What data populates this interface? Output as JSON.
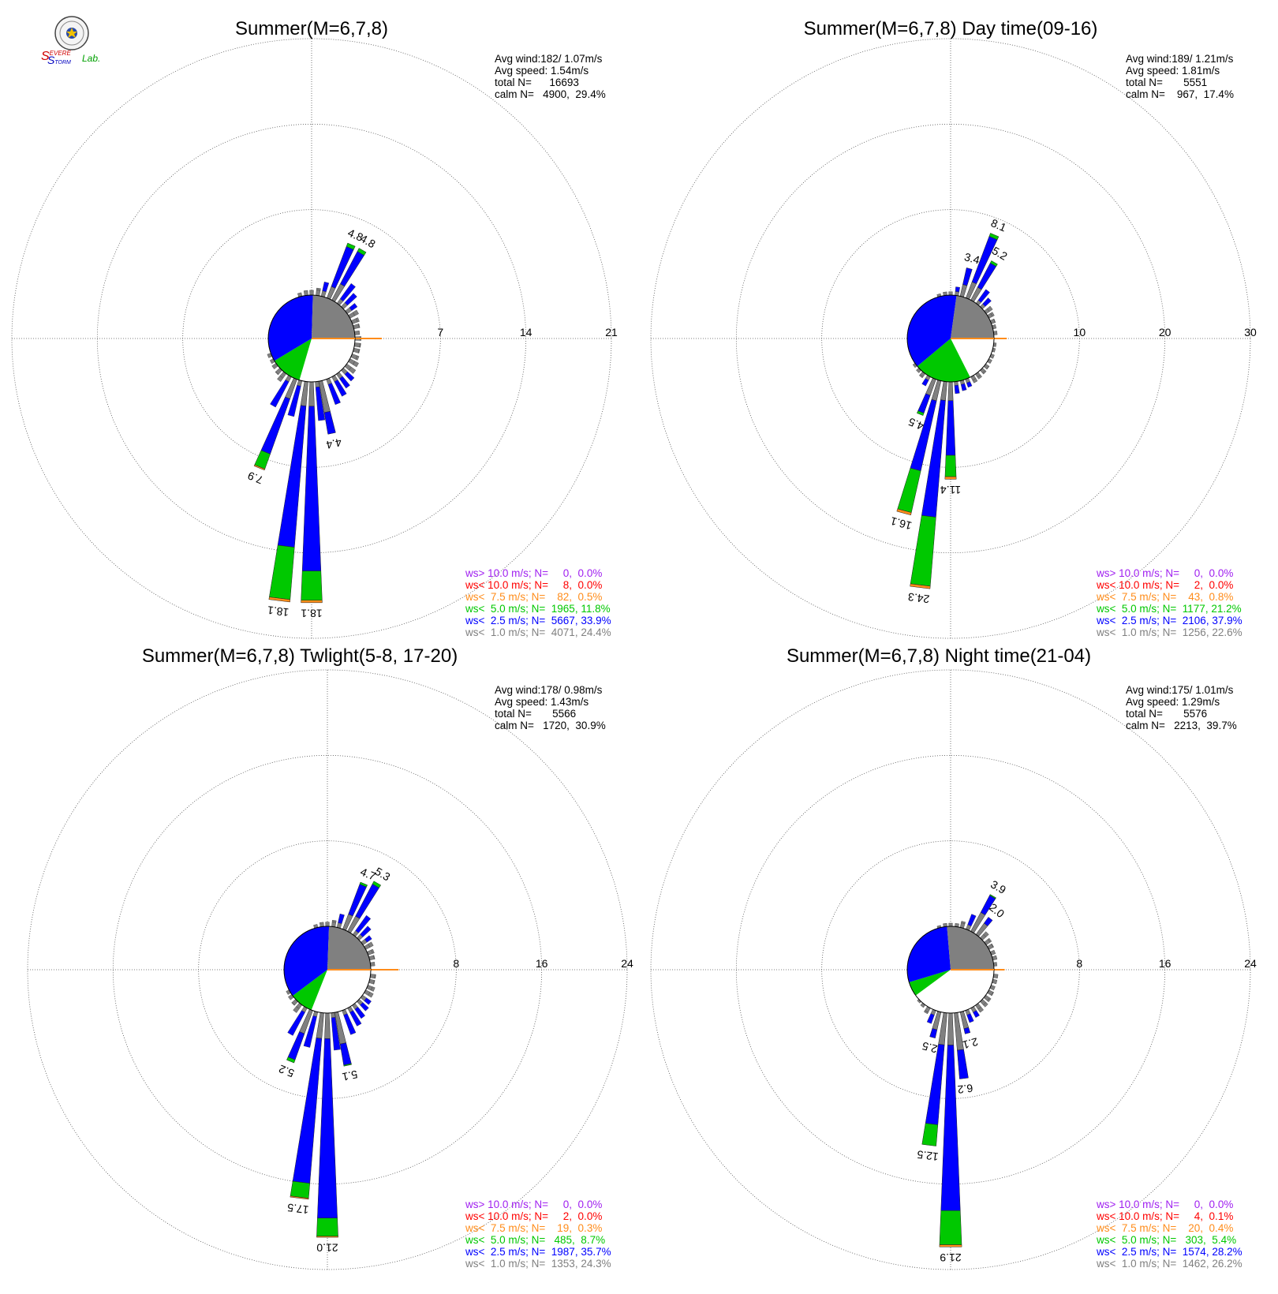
{
  "logo": {
    "text_s1": "S",
    "text_evere": "EVERE",
    "text_s2": "S",
    "text_torm": "TORM",
    "text_lab": "Lab."
  },
  "colors": {
    "ws_gt10": "#a020f0",
    "ws_lt10": "#ff0000",
    "ws_lt75": "#ff8c1a",
    "ws_lt50": "#00c800",
    "ws_lt25": "#0000ff",
    "ws_lt10c": "#808080"
  },
  "chart_data": [
    {
      "type": "wind_rose",
      "title": "Summer(M=6,7,8)",
      "stats": [
        "Avg wind:182/ 1.07m/s",
        "Avg speed: 1.54m/s",
        "total N=      16693",
        "calm N=   4900,  29.4%"
      ],
      "rings": [
        7,
        14,
        21
      ],
      "ring_labels": [
        "7",
        "14",
        "21"
      ],
      "calm_pie": [
        {
          "class": "calm",
          "color": "#ffffff",
          "percent": 29.4
        },
        {
          "class": "ws< 5.0",
          "color": "#00c800",
          "percent": 11.8
        },
        {
          "class": "ws< 2.5",
          "color": "#0000ff",
          "percent": 33.9
        },
        {
          "class": "ws< 1.0",
          "color": "#808080",
          "percent": 24.4
        }
      ],
      "labeled_petals": [
        {
          "dir_deg": 23,
          "gray": 1.0,
          "blue": 3.5,
          "green": 0.3,
          "orange": 0.0,
          "label": "4.8"
        },
        {
          "dir_deg": 30,
          "gray": 1.5,
          "blue": 3.0,
          "green": 0.3,
          "orange": 0.0,
          "label": "4.8"
        },
        {
          "dir_deg": 202,
          "gray": 1.7,
          "blue": 4.8,
          "green": 1.3,
          "orange": 0.1,
          "label": "7.9"
        },
        {
          "dir_deg": 187,
          "gray": 2.0,
          "blue": 11.6,
          "green": 4.3,
          "orange": 0.2,
          "label": "18.1"
        },
        {
          "dir_deg": 180,
          "gray": 2.0,
          "blue": 13.5,
          "green": 2.4,
          "orange": 0.2,
          "label": "18.1"
        },
        {
          "dir_deg": 168,
          "gray": 2.6,
          "blue": 1.8,
          "green": 0.0,
          "orange": 0.0,
          "label": "4.4"
        }
      ],
      "small_petals": [
        {
          "dir_deg": 0,
          "value": 0.4
        },
        {
          "dir_deg": 8,
          "value": 0.6
        },
        {
          "dir_deg": 15,
          "value": 1.2
        },
        {
          "dir_deg": 38,
          "value": 2.0
        },
        {
          "dir_deg": 45,
          "value": 1.5
        },
        {
          "dir_deg": 53,
          "value": 1.0
        },
        {
          "dir_deg": 60,
          "value": 0.8
        },
        {
          "dir_deg": 68,
          "value": 0.6
        },
        {
          "dir_deg": 75,
          "value": 0.5
        },
        {
          "dir_deg": 83,
          "value": 0.4
        },
        {
          "dir_deg": 90,
          "value": 0.5
        },
        {
          "dir_deg": 98,
          "value": 0.5
        },
        {
          "dir_deg": 105,
          "value": 0.5
        },
        {
          "dir_deg": 113,
          "value": 0.6
        },
        {
          "dir_deg": 120,
          "value": 0.8
        },
        {
          "dir_deg": 128,
          "value": 0.9
        },
        {
          "dir_deg": 135,
          "value": 1.2
        },
        {
          "dir_deg": 143,
          "value": 1.4
        },
        {
          "dir_deg": 150,
          "value": 1.8
        },
        {
          "dir_deg": 158,
          "value": 2.2
        },
        {
          "dir_deg": 173,
          "value": 3.2
        },
        {
          "dir_deg": 195,
          "value": 3.0
        },
        {
          "dir_deg": 210,
          "value": 2.8
        },
        {
          "dir_deg": 218,
          "value": 0.8
        },
        {
          "dir_deg": 225,
          "value": 0.5
        },
        {
          "dir_deg": 233,
          "value": 0.4
        },
        {
          "dir_deg": 240,
          "value": 0.3
        },
        {
          "dir_deg": 248,
          "value": 0.3
        },
        {
          "dir_deg": 345,
          "value": 0.3
        },
        {
          "dir_deg": 353,
          "value": 0.4
        }
      ],
      "east_bar": 2.2,
      "legend": [
        {
          "text": "ws> 10.0 m/s; N=     0,  0.0%",
          "color": "#a020f0"
        },
        {
          "text": "ws< 10.0 m/s; N=     8,  0.0%",
          "color": "#ff0000"
        },
        {
          "text": "ws<  7.5 m/s; N=    82,  0.5%",
          "color": "#ff8c1a"
        },
        {
          "text": "ws<  5.0 m/s; N=  1965, 11.8%",
          "color": "#00c800"
        },
        {
          "text": "ws<  2.5 m/s; N=  5667, 33.9%",
          "color": "#0000ff"
        },
        {
          "text": "ws<  1.0 m/s; N=  4071, 24.4%",
          "color": "#808080"
        }
      ]
    },
    {
      "type": "wind_rose",
      "title": "Summer(M=6,7,8) Day time(09-16)",
      "stats": [
        "Avg wind:189/ 1.21m/s",
        "Avg speed: 1.81m/s",
        "total N=       5551",
        "calm N=    967,  17.4%"
      ],
      "rings": [
        10,
        20,
        30
      ],
      "ring_labels": [
        "10",
        "20",
        "30"
      ],
      "calm_pie": [
        {
          "class": "calm",
          "color": "#ffffff",
          "percent": 17.4
        },
        {
          "class": "ws< 5.0",
          "color": "#00c800",
          "percent": 21.2
        },
        {
          "class": "ws< 2.5",
          "color": "#0000ff",
          "percent": 37.9
        },
        {
          "class": "ws< 1.0",
          "color": "#808080",
          "percent": 22.6
        }
      ],
      "labeled_petals": [
        {
          "dir_deg": 15,
          "gray": 1.4,
          "blue": 2.0,
          "green": 0.0,
          "orange": 0.0,
          "label": "3.4"
        },
        {
          "dir_deg": 23,
          "gray": 2.0,
          "blue": 5.7,
          "green": 0.4,
          "orange": 0.0,
          "label": "8.1"
        },
        {
          "dir_deg": 30,
          "gray": 1.7,
          "blue": 3.2,
          "green": 0.3,
          "orange": 0.0,
          "label": "5.2"
        },
        {
          "dir_deg": 202,
          "gray": 2.0,
          "blue": 2.2,
          "green": 0.3,
          "orange": 0.0,
          "label": "4.5"
        },
        {
          "dir_deg": 195,
          "gray": 2.4,
          "blue": 8.4,
          "green": 5.0,
          "orange": 0.3,
          "label": "16.1"
        },
        {
          "dir_deg": 187,
          "gray": 2.2,
          "blue": 13.7,
          "green": 8.1,
          "orange": 0.3,
          "label": "24.3"
        },
        {
          "dir_deg": 180,
          "gray": 2.2,
          "blue": 6.4,
          "green": 2.5,
          "orange": 0.3,
          "label": "11.4"
        }
      ],
      "small_petals": [
        {
          "dir_deg": 0,
          "value": 0.4
        },
        {
          "dir_deg": 8,
          "value": 1.0
        },
        {
          "dir_deg": 38,
          "value": 2.0
        },
        {
          "dir_deg": 45,
          "value": 1.4
        },
        {
          "dir_deg": 53,
          "value": 0.9
        },
        {
          "dir_deg": 60,
          "value": 0.7
        },
        {
          "dir_deg": 68,
          "value": 0.5
        },
        {
          "dir_deg": 75,
          "value": 0.4
        },
        {
          "dir_deg": 83,
          "value": 0.4
        },
        {
          "dir_deg": 98,
          "value": 0.3
        },
        {
          "dir_deg": 105,
          "value": 0.3
        },
        {
          "dir_deg": 113,
          "value": 0.4
        },
        {
          "dir_deg": 120,
          "value": 0.4
        },
        {
          "dir_deg": 128,
          "value": 0.5
        },
        {
          "dir_deg": 135,
          "value": 0.6
        },
        {
          "dir_deg": 143,
          "value": 0.7
        },
        {
          "dir_deg": 150,
          "value": 0.8
        },
        {
          "dir_deg": 158,
          "value": 1.0
        },
        {
          "dir_deg": 165,
          "value": 1.2
        },
        {
          "dir_deg": 173,
          "value": 1.4
        },
        {
          "dir_deg": 210,
          "value": 1.2
        },
        {
          "dir_deg": 218,
          "value": 0.6
        },
        {
          "dir_deg": 225,
          "value": 0.4
        },
        {
          "dir_deg": 233,
          "value": 0.3
        },
        {
          "dir_deg": 345,
          "value": 0.3
        },
        {
          "dir_deg": 353,
          "value": 0.4
        }
      ],
      "east_bar": 1.5,
      "legend": [
        {
          "text": "ws> 10.0 m/s; N=     0,  0.0%",
          "color": "#a020f0"
        },
        {
          "text": "ws< 10.0 m/s; N=     2,  0.0%",
          "color": "#ff0000"
        },
        {
          "text": "ws<  7.5 m/s; N=    43,  0.8%",
          "color": "#ff8c1a"
        },
        {
          "text": "ws<  5.0 m/s; N=  1177, 21.2%",
          "color": "#00c800"
        },
        {
          "text": "ws<  2.5 m/s; N=  2106, 37.9%",
          "color": "#0000ff"
        },
        {
          "text": "ws<  1.0 m/s; N=  1256, 22.6%",
          "color": "#808080"
        }
      ]
    },
    {
      "type": "wind_rose",
      "title": "Summer(M=6,7,8) Twlight(5-8, 17-20)",
      "stats": [
        "Avg wind:178/ 0.98m/s",
        "Avg speed: 1.43m/s",
        "total N=       5566",
        "calm N=   1720,  30.9%"
      ],
      "rings": [
        8,
        16,
        24
      ],
      "ring_labels": [
        "8",
        "16",
        "24"
      ],
      "calm_pie": [
        {
          "class": "calm",
          "color": "#ffffff",
          "percent": 30.9
        },
        {
          "class": "ws< 5.0",
          "color": "#00c800",
          "percent": 8.7
        },
        {
          "class": "ws< 2.5",
          "color": "#0000ff",
          "percent": 35.7
        },
        {
          "class": "ws< 1.0",
          "color": "#808080",
          "percent": 24.3
        }
      ],
      "labeled_petals": [
        {
          "dir_deg": 23,
          "gray": 1.5,
          "blue": 3.0,
          "green": 0.2,
          "orange": 0.0,
          "label": "4.7"
        },
        {
          "dir_deg": 30,
          "gray": 1.6,
          "blue": 3.4,
          "green": 0.3,
          "orange": 0.0,
          "label": "5.3"
        },
        {
          "dir_deg": 202,
          "gray": 2.3,
          "blue": 2.6,
          "green": 0.3,
          "orange": 0.0,
          "label": "5.2"
        },
        {
          "dir_deg": 187,
          "gray": 2.4,
          "blue": 13.6,
          "green": 1.4,
          "orange": 0.1,
          "label": "17.5"
        },
        {
          "dir_deg": 180,
          "gray": 2.4,
          "blue": 16.8,
          "green": 1.7,
          "orange": 0.1,
          "label": "21.0"
        },
        {
          "dir_deg": 168,
          "gray": 3.0,
          "blue": 2.0,
          "green": 0.1,
          "orange": 0.0,
          "label": "5.1"
        }
      ],
      "small_petals": [
        {
          "dir_deg": 0,
          "value": 0.4
        },
        {
          "dir_deg": 8,
          "value": 0.6
        },
        {
          "dir_deg": 15,
          "value": 1.3
        },
        {
          "dir_deg": 38,
          "value": 2.2
        },
        {
          "dir_deg": 45,
          "value": 1.5
        },
        {
          "dir_deg": 53,
          "value": 1.0
        },
        {
          "dir_deg": 60,
          "value": 0.8
        },
        {
          "dir_deg": 68,
          "value": 0.6
        },
        {
          "dir_deg": 75,
          "value": 0.5
        },
        {
          "dir_deg": 83,
          "value": 0.4
        },
        {
          "dir_deg": 98,
          "value": 0.5
        },
        {
          "dir_deg": 105,
          "value": 0.5
        },
        {
          "dir_deg": 113,
          "value": 0.7
        },
        {
          "dir_deg": 120,
          "value": 0.8
        },
        {
          "dir_deg": 128,
          "value": 1.0
        },
        {
          "dir_deg": 135,
          "value": 1.2
        },
        {
          "dir_deg": 143,
          "value": 1.5
        },
        {
          "dir_deg": 150,
          "value": 1.9
        },
        {
          "dir_deg": 158,
          "value": 2.4
        },
        {
          "dir_deg": 173,
          "value": 3.5
        },
        {
          "dir_deg": 195,
          "value": 3.4
        },
        {
          "dir_deg": 210,
          "value": 2.9
        },
        {
          "dir_deg": 218,
          "value": 0.9
        },
        {
          "dir_deg": 225,
          "value": 0.5
        },
        {
          "dir_deg": 233,
          "value": 0.4
        },
        {
          "dir_deg": 240,
          "value": 0.3
        },
        {
          "dir_deg": 345,
          "value": 0.3
        },
        {
          "dir_deg": 353,
          "value": 0.4
        }
      ],
      "east_bar": 2.6,
      "legend": [
        {
          "text": "ws> 10.0 m/s; N=     0,  0.0%",
          "color": "#a020f0"
        },
        {
          "text": "ws< 10.0 m/s; N=     2,  0.0%",
          "color": "#ff0000"
        },
        {
          "text": "ws<  7.5 m/s; N=    19,  0.3%",
          "color": "#ff8c1a"
        },
        {
          "text": "ws<  5.0 m/s; N=   485,  8.7%",
          "color": "#00c800"
        },
        {
          "text": "ws<  2.5 m/s; N=  1987, 35.7%",
          "color": "#0000ff"
        },
        {
          "text": "ws<  1.0 m/s; N=  1353, 24.3%",
          "color": "#808080"
        }
      ]
    },
    {
      "type": "wind_rose",
      "title": "Summer(M=6,7,8) Night time(21-04)",
      "stats": [
        "Avg wind:175/ 1.01m/s",
        "Avg speed: 1.29m/s",
        "total N=       5576",
        "calm N=   2213,  39.7%"
      ],
      "rings": [
        8,
        16,
        24
      ],
      "ring_labels": [
        "8",
        "16",
        "24"
      ],
      "calm_pie": [
        {
          "class": "calm",
          "color": "#ffffff",
          "percent": 39.7
        },
        {
          "class": "ws< 5.0",
          "color": "#00c800",
          "percent": 5.4
        },
        {
          "class": "ws< 2.5",
          "color": "#0000ff",
          "percent": 28.2
        },
        {
          "class": "ws< 1.0",
          "color": "#808080",
          "percent": 26.2
        }
      ],
      "labeled_petals": [
        {
          "dir_deg": 30,
          "gray": 2.0,
          "blue": 1.8,
          "green": 0.1,
          "orange": 0.0,
          "label": "3.9"
        },
        {
          "dir_deg": 38,
          "gray": 1.3,
          "blue": 0.7,
          "green": 0.0,
          "orange": 0.0,
          "label": "2.0"
        },
        {
          "dir_deg": 195,
          "gray": 1.7,
          "blue": 0.8,
          "green": 0.0,
          "orange": 0.0,
          "label": "2.5"
        },
        {
          "dir_deg": 187,
          "gray": 3.0,
          "blue": 7.5,
          "green": 2.0,
          "orange": 0.0,
          "label": "12.5"
        },
        {
          "dir_deg": 180,
          "gray": 3.0,
          "blue": 15.5,
          "green": 3.2,
          "orange": 0.2,
          "label": "21.9"
        },
        {
          "dir_deg": 173,
          "gray": 3.5,
          "blue": 2.7,
          "green": 0.0,
          "orange": 0.0,
          "label": "6.2"
        },
        {
          "dir_deg": 165,
          "gray": 1.6,
          "blue": 0.5,
          "green": 0.0,
          "orange": 0.0,
          "label": "2.1"
        }
      ],
      "small_petals": [
        {
          "dir_deg": 0,
          "value": 0.3
        },
        {
          "dir_deg": 8,
          "value": 0.3
        },
        {
          "dir_deg": 15,
          "value": 0.6
        },
        {
          "dir_deg": 23,
          "value": 1.5
        },
        {
          "dir_deg": 45,
          "value": 0.8
        },
        {
          "dir_deg": 53,
          "value": 0.6
        },
        {
          "dir_deg": 60,
          "value": 0.5
        },
        {
          "dir_deg": 68,
          "value": 0.4
        },
        {
          "dir_deg": 75,
          "value": 0.4
        },
        {
          "dir_deg": 83,
          "value": 0.3
        },
        {
          "dir_deg": 98,
          "value": 0.4
        },
        {
          "dir_deg": 105,
          "value": 0.4
        },
        {
          "dir_deg": 113,
          "value": 0.4
        },
        {
          "dir_deg": 120,
          "value": 0.5
        },
        {
          "dir_deg": 128,
          "value": 0.6
        },
        {
          "dir_deg": 135,
          "value": 0.7
        },
        {
          "dir_deg": 143,
          "value": 0.8
        },
        {
          "dir_deg": 150,
          "value": 1.0
        },
        {
          "dir_deg": 158,
          "value": 1.2
        },
        {
          "dir_deg": 202,
          "value": 1.3
        },
        {
          "dir_deg": 210,
          "value": 0.6
        },
        {
          "dir_deg": 218,
          "value": 0.3
        },
        {
          "dir_deg": 225,
          "value": 0.2
        },
        {
          "dir_deg": 345,
          "value": 0.2
        },
        {
          "dir_deg": 353,
          "value": 0.3
        }
      ],
      "east_bar": 1.0,
      "legend": [
        {
          "text": "ws> 10.0 m/s; N=     0,  0.0%",
          "color": "#a020f0"
        },
        {
          "text": "ws< 10.0 m/s; N=     4,  0.1%",
          "color": "#ff0000"
        },
        {
          "text": "ws<  7.5 m/s; N=    20,  0.4%",
          "color": "#ff8c1a"
        },
        {
          "text": "ws<  5.0 m/s; N=   303,  5.4%",
          "color": "#00c800"
        },
        {
          "text": "ws<  2.5 m/s; N=  1574, 28.2%",
          "color": "#0000ff"
        },
        {
          "text": "ws<  1.0 m/s; N=  1462, 26.2%",
          "color": "#808080"
        }
      ]
    }
  ]
}
